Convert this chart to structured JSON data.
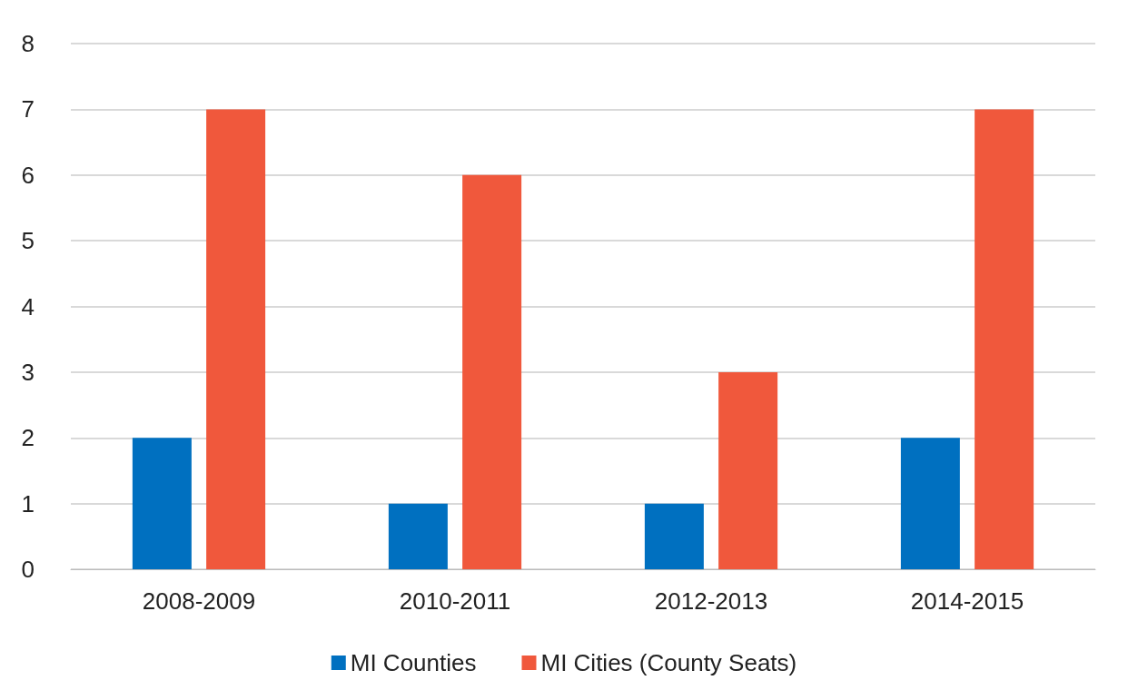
{
  "chart_data": {
    "type": "bar",
    "categories": [
      "2008-2009",
      "2010-2011",
      "2012-2013",
      "2014-2015"
    ],
    "series": [
      {
        "name": "MI Counties",
        "color": "#0070c0",
        "values": [
          2,
          1,
          1,
          2
        ]
      },
      {
        "name": "MI Cities (County Seats)",
        "color": "#f0583c",
        "values": [
          7,
          6,
          3,
          7
        ]
      }
    ],
    "ylim": [
      0,
      8
    ],
    "yticks": [
      0,
      1,
      2,
      3,
      4,
      5,
      6,
      7,
      8
    ],
    "grid": "y",
    "legend": "bottom"
  }
}
